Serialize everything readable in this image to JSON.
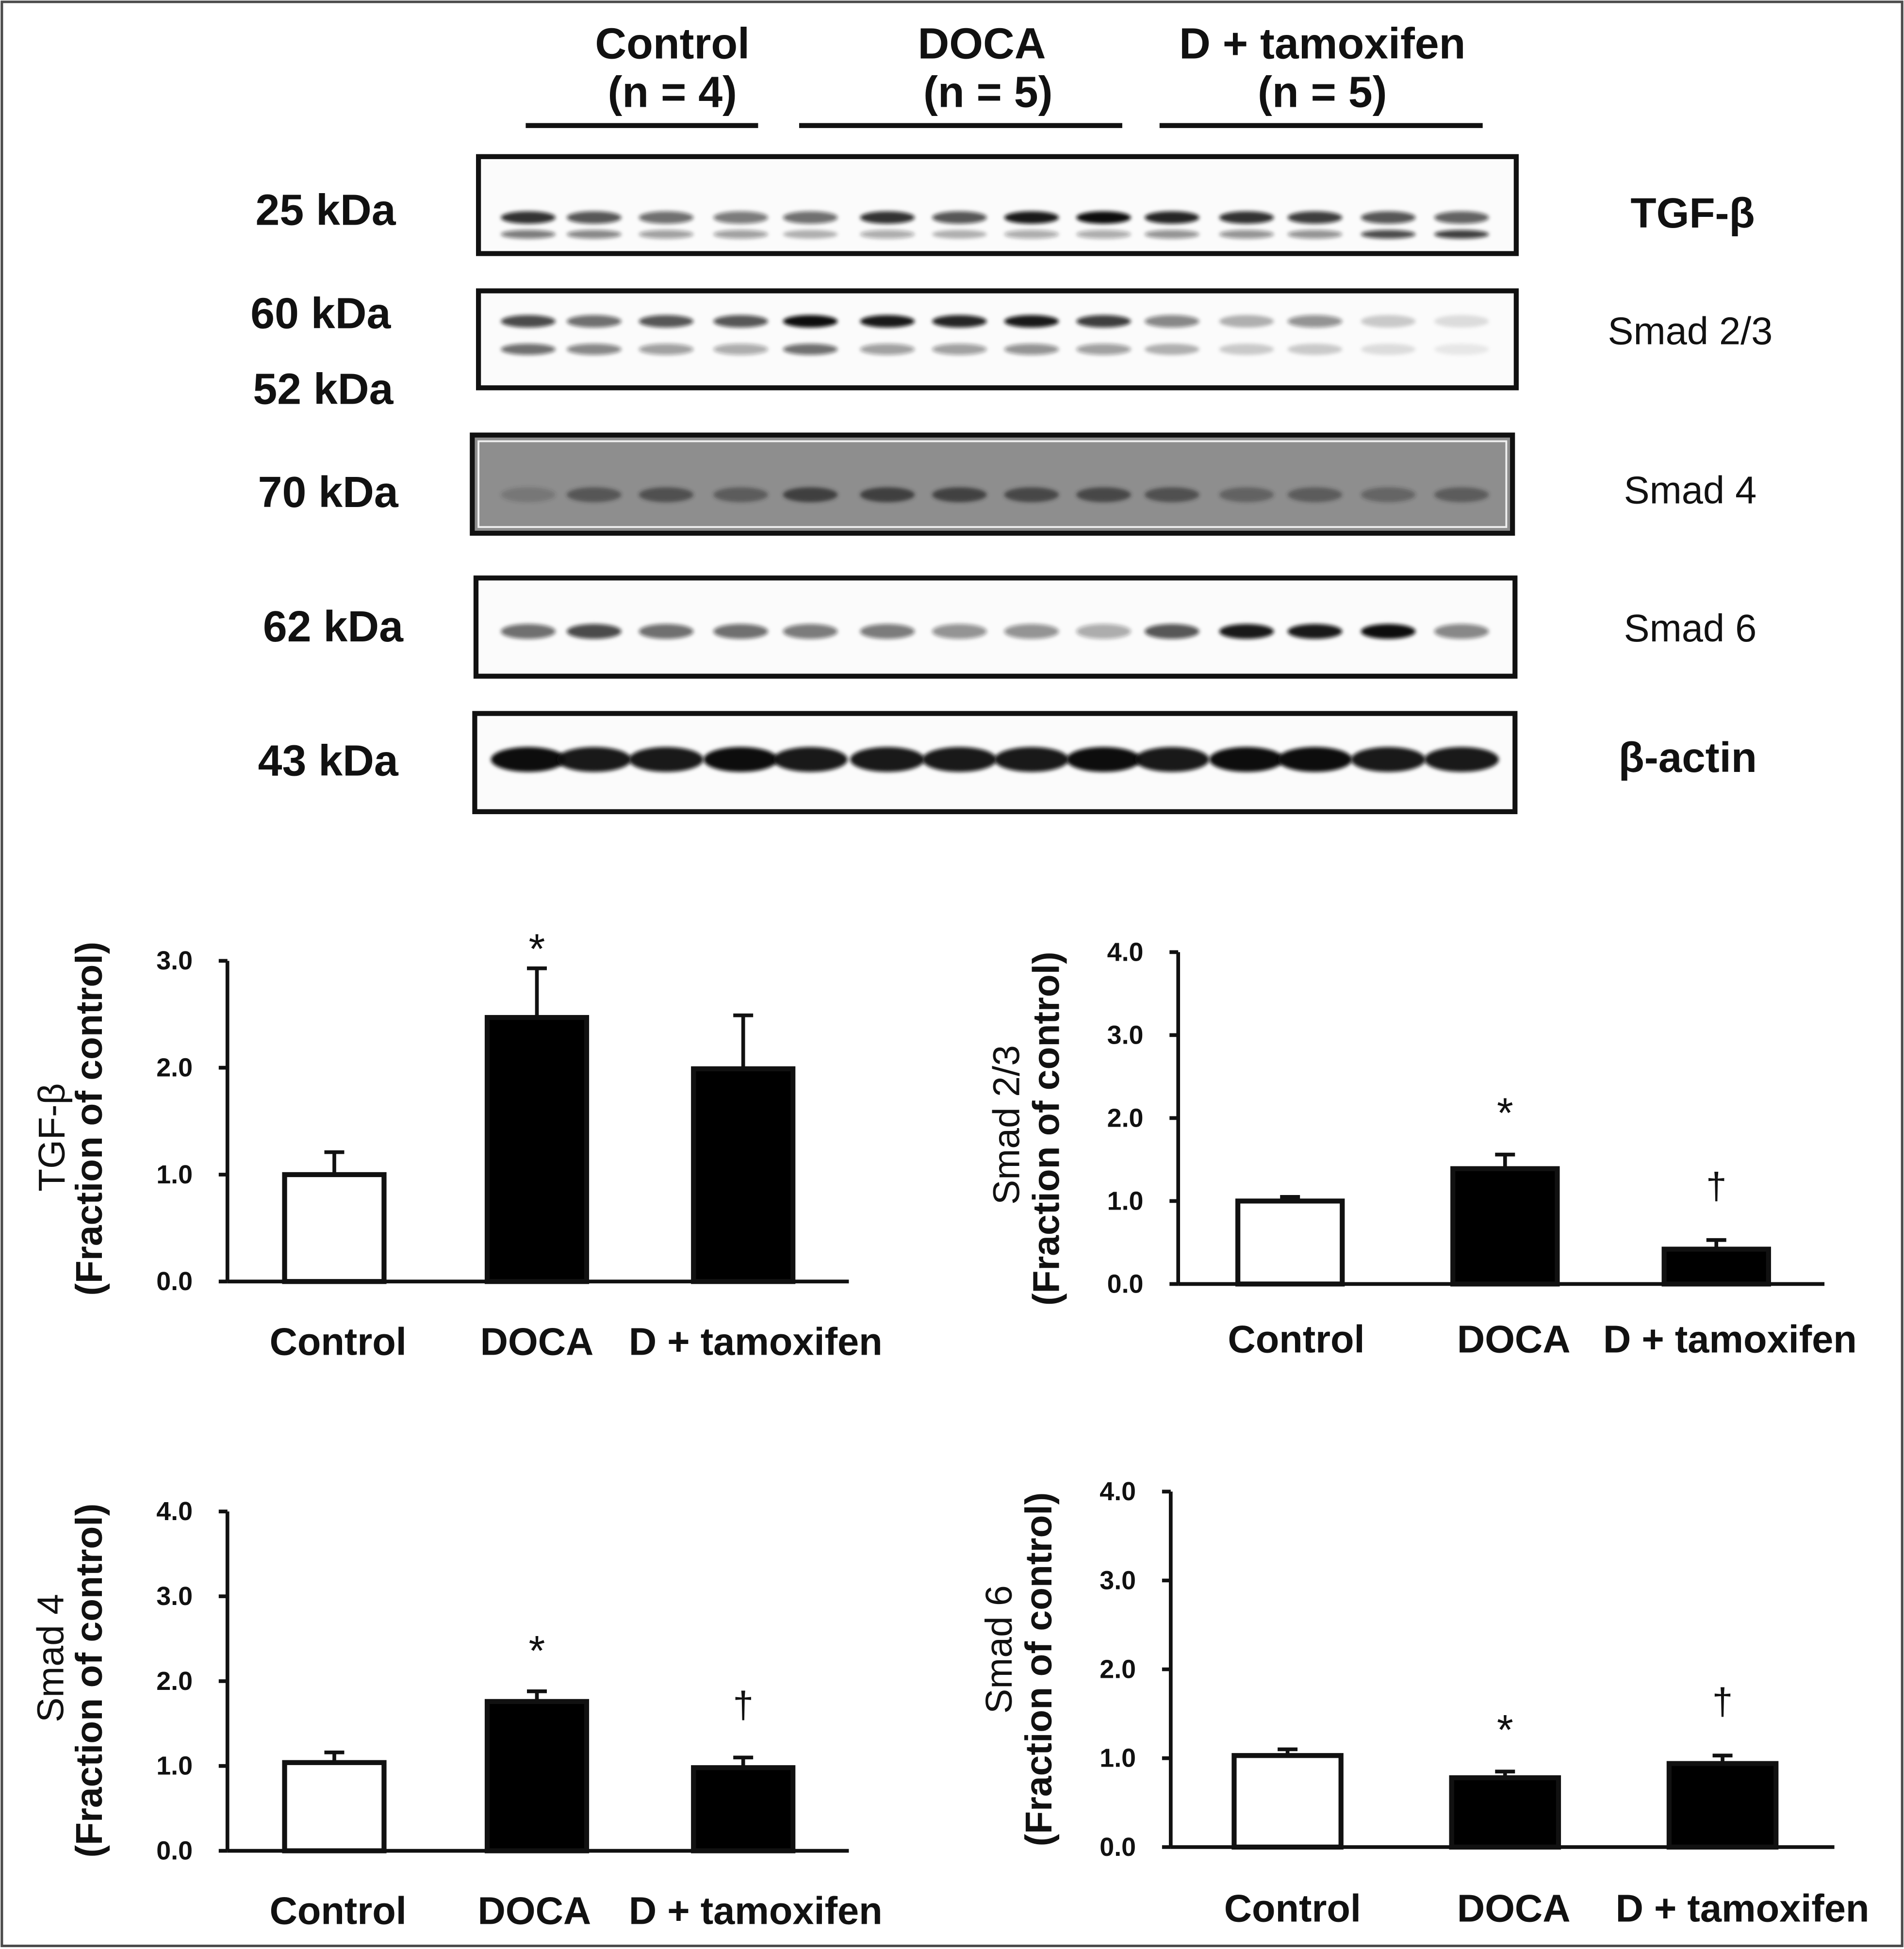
{
  "blot": {
    "groups": [
      {
        "label": "Control",
        "n": "(n = 4)"
      },
      {
        "label": "DOCA",
        "n": "(n = 5)"
      },
      {
        "label": "D + tamoxifen",
        "n": "(n = 5)"
      }
    ],
    "rows": [
      {
        "protein": "TGF-β",
        "markers": [
          "25 kDa"
        ],
        "bands": [
          [
            0.85,
            0.7,
            0.6,
            0.55,
            0.6,
            0.85,
            0.7,
            0.95,
            1.0,
            0.9,
            0.85,
            0.8,
            0.7,
            0.65
          ],
          [
            0.55,
            0.5,
            0.4,
            0.4,
            0.3,
            0.35,
            0.3,
            0.35,
            0.35,
            0.45,
            0.45,
            0.45,
            0.75,
            0.8
          ]
        ]
      },
      {
        "protein": "Smad 2/3",
        "markers": [
          "60 kDa",
          "52 kDa"
        ],
        "bands": [
          [
            0.75,
            0.6,
            0.7,
            0.7,
            1.0,
            0.95,
            0.9,
            0.95,
            0.8,
            0.5,
            0.3,
            0.45,
            0.2,
            0.12
          ],
          [
            0.6,
            0.5,
            0.4,
            0.35,
            0.6,
            0.4,
            0.4,
            0.45,
            0.4,
            0.3,
            0.2,
            0.2,
            0.12,
            0.08
          ]
        ]
      },
      {
        "protein": "Smad 4",
        "markers": [
          "70 kDa"
        ],
        "bands": [
          [
            0.25,
            0.55,
            0.6,
            0.5,
            0.8,
            0.8,
            0.75,
            0.7,
            0.7,
            0.6,
            0.45,
            0.5,
            0.4,
            0.5
          ]
        ]
      },
      {
        "protein": "Smad 6",
        "markers": [
          "62 kDa"
        ],
        "bands": [
          [
            0.6,
            0.75,
            0.6,
            0.6,
            0.55,
            0.55,
            0.45,
            0.45,
            0.35,
            0.7,
            0.95,
            0.95,
            1.0,
            0.5
          ]
        ]
      },
      {
        "protein": "β-actin",
        "markers": [
          "43 kDa"
        ],
        "bands": [
          [
            1.0,
            0.95,
            0.95,
            1.0,
            0.95,
            0.95,
            0.95,
            0.95,
            1.0,
            0.95,
            1.0,
            1.0,
            0.95,
            0.95
          ]
        ]
      }
    ]
  },
  "chart_data": [
    {
      "type": "bar",
      "title": "",
      "xlabel": "",
      "ylabel": [
        "TGF-β",
        "(Fraction of control)"
      ],
      "categories": [
        "Control",
        "DOCA",
        "D + tamoxifen"
      ],
      "values": [
        1.0,
        2.47,
        1.99
      ],
      "errors": [
        0.21,
        0.46,
        0.5
      ],
      "markers": [
        "",
        "*",
        ""
      ],
      "bar_colors": [
        "#ffffff",
        "#000000",
        "#000000"
      ],
      "ylim": [
        0,
        3
      ],
      "yticks": [
        0,
        1,
        2,
        3
      ],
      "ytick_labels": [
        "0.0",
        "1.0",
        "2.0",
        "3.0"
      ]
    },
    {
      "type": "bar",
      "title": "",
      "xlabel": "",
      "ylabel": [
        "Smad 2/3",
        "(Fraction of control)"
      ],
      "categories": [
        "Control",
        "DOCA",
        "D + tamoxifen"
      ],
      "values": [
        1.0,
        1.39,
        0.42
      ],
      "errors": [
        0.05,
        0.17,
        0.11
      ],
      "markers": [
        "",
        "*",
        "†"
      ],
      "bar_colors": [
        "#ffffff",
        "#000000",
        "#000000"
      ],
      "ylim": [
        0,
        4
      ],
      "yticks": [
        0,
        1,
        2,
        3,
        4
      ],
      "ytick_labels": [
        "0.0",
        "1.0",
        "2.0",
        "3.0",
        "4.0"
      ]
    },
    {
      "type": "bar",
      "title": "",
      "xlabel": "",
      "ylabel": [
        "Smad 4",
        "(Fraction of control)"
      ],
      "categories": [
        "Control",
        "DOCA",
        "D + tamoxifen"
      ],
      "values": [
        1.04,
        1.76,
        0.98
      ],
      "errors": [
        0.12,
        0.12,
        0.12
      ],
      "markers": [
        "",
        "*",
        "†"
      ],
      "bar_colors": [
        "#ffffff",
        "#000000",
        "#000000"
      ],
      "ylim": [
        0,
        4
      ],
      "yticks": [
        0,
        1,
        2,
        3,
        4
      ],
      "ytick_labels": [
        "0.0",
        "1.0",
        "2.0",
        "3.0",
        "4.0"
      ]
    },
    {
      "type": "bar",
      "title": "",
      "xlabel": "",
      "ylabel": [
        "Smad 6",
        "(Fraction of control)"
      ],
      "categories": [
        "Control",
        "DOCA",
        "D + tamoxifen"
      ],
      "values": [
        1.03,
        0.78,
        0.94
      ],
      "errors": [
        0.07,
        0.07,
        0.09
      ],
      "markers": [
        "",
        "*",
        "†"
      ],
      "bar_colors": [
        "#ffffff",
        "#000000",
        "#000000"
      ],
      "ylim": [
        0,
        4
      ],
      "yticks": [
        0,
        1,
        2,
        3,
        4
      ],
      "ytick_labels": [
        "0.0",
        "1.0",
        "2.0",
        "3.0",
        "4.0"
      ]
    }
  ]
}
